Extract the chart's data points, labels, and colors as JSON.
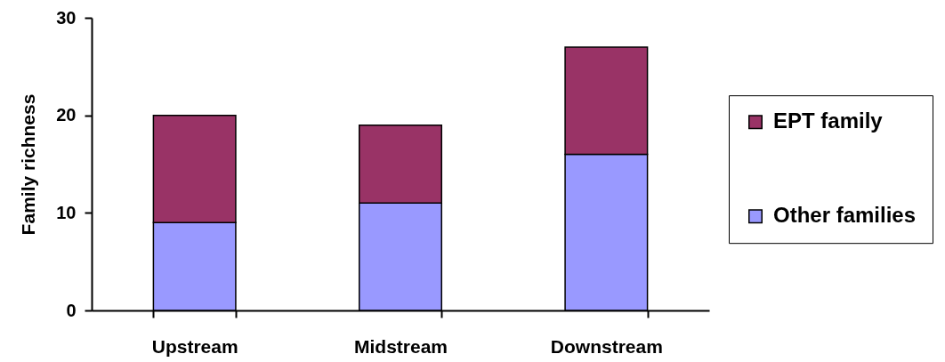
{
  "chart_data": {
    "type": "bar",
    "ylabel": "Family richness",
    "categories": [
      "Upstream",
      "Midstream",
      "Downstream"
    ],
    "stacked": true,
    "series": [
      {
        "name": "Other families",
        "color": "#9999ff",
        "values": [
          9,
          11,
          16
        ]
      },
      {
        "name": "EPT family",
        "color": "#993366",
        "values": [
          11,
          8,
          11
        ]
      }
    ],
    "ylim": [
      0,
      30
    ],
    "yticks": [
      0,
      10,
      20,
      30
    ],
    "grid": false,
    "legend": "right"
  }
}
